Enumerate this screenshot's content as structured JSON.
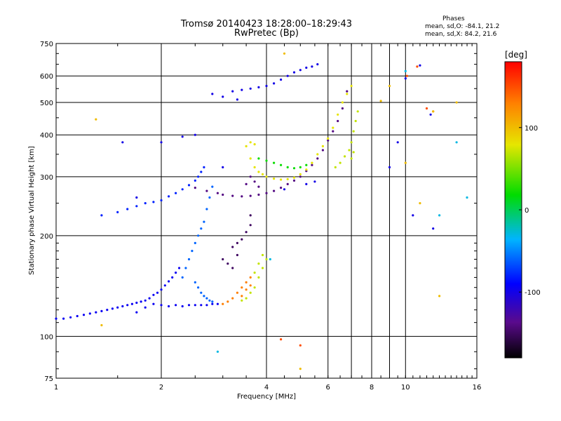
{
  "header": {
    "title": "Tromsø 20140423 18:28:00–18:29:43",
    "subtitle": "RwPretec (Bp)"
  },
  "phase_stats": {
    "title": "Phases",
    "o_line": "mean, sd,O: -84.1, 21.2",
    "x_line": "mean, sd,X:  84.2, 21.6"
  },
  "chart_data": {
    "type": "scatter",
    "xlabel": "Frequency [MHz]",
    "ylabel": "Stationary phase Virtual Height [km]",
    "x_scale": "log",
    "y_scale": "log",
    "xlim": [
      1,
      16
    ],
    "ylim": [
      75,
      750
    ],
    "x_ticks": [
      1,
      2,
      4,
      6,
      8,
      10,
      16
    ],
    "x_grid": [
      2,
      4,
      6,
      7,
      8,
      9,
      10,
      16
    ],
    "y_ticks": [
      75,
      100,
      200,
      300,
      400,
      500,
      600,
      750
    ],
    "grid": true,
    "colorbar": {
      "label": "[deg]",
      "ticks": [
        100,
        0,
        -100
      ],
      "range": [
        -180,
        180
      ]
    },
    "series": [
      {
        "color_deg": -95,
        "points": [
          [
            1.0,
            113
          ],
          [
            1.05,
            113
          ],
          [
            1.1,
            114
          ],
          [
            1.15,
            115
          ],
          [
            1.2,
            116
          ],
          [
            1.25,
            117
          ],
          [
            1.3,
            118
          ],
          [
            1.35,
            119
          ],
          [
            1.4,
            120
          ],
          [
            1.45,
            121
          ],
          [
            1.5,
            122
          ],
          [
            1.55,
            123
          ],
          [
            1.6,
            124
          ],
          [
            1.65,
            125
          ],
          [
            1.7,
            126
          ],
          [
            1.75,
            127
          ],
          [
            1.8,
            128
          ],
          [
            1.85,
            130
          ],
          [
            1.9,
            133
          ],
          [
            1.95,
            135
          ],
          [
            2.0,
            138
          ],
          [
            2.05,
            142
          ],
          [
            2.1,
            146
          ],
          [
            2.15,
            150
          ],
          [
            2.2,
            155
          ],
          [
            2.25,
            160
          ],
          [
            1.7,
            118
          ],
          [
            1.8,
            122
          ],
          [
            1.9,
            125
          ],
          [
            2.0,
            124
          ],
          [
            2.1,
            123
          ],
          [
            2.2,
            124
          ],
          [
            2.3,
            123
          ],
          [
            2.4,
            124
          ],
          [
            2.5,
            124
          ],
          [
            2.6,
            124
          ],
          [
            2.7,
            124
          ],
          [
            2.8,
            125
          ],
          [
            2.9,
            125
          ]
        ]
      },
      {
        "color_deg": -60,
        "points": [
          [
            2.3,
            150
          ],
          [
            2.35,
            160
          ],
          [
            2.4,
            170
          ],
          [
            2.45,
            180
          ],
          [
            2.5,
            190
          ],
          [
            2.55,
            200
          ],
          [
            2.6,
            210
          ],
          [
            2.65,
            220
          ],
          [
            2.7,
            240
          ],
          [
            2.75,
            260
          ],
          [
            2.8,
            280
          ],
          [
            2.5,
            145
          ],
          [
            2.55,
            140
          ],
          [
            2.6,
            135
          ],
          [
            2.65,
            132
          ],
          [
            2.7,
            130
          ],
          [
            2.75,
            128
          ],
          [
            2.8,
            127
          ]
        ]
      },
      {
        "color_deg": -80,
        "points": [
          [
            1.35,
            230
          ],
          [
            1.5,
            235
          ],
          [
            1.6,
            240
          ],
          [
            1.7,
            245
          ],
          [
            1.8,
            250
          ],
          [
            1.9,
            252
          ],
          [
            2.0,
            255
          ],
          [
            2.1,
            262
          ],
          [
            2.2,
            268
          ],
          [
            2.3,
            275
          ],
          [
            2.4,
            283
          ],
          [
            2.5,
            292
          ],
          [
            2.55,
            300
          ],
          [
            2.6,
            310
          ],
          [
            2.65,
            320
          ]
        ]
      },
      {
        "color_deg": -140,
        "points": [
          [
            2.5,
            278
          ],
          [
            2.7,
            272
          ],
          [
            2.9,
            268
          ],
          [
            3.0,
            265
          ],
          [
            3.2,
            263
          ],
          [
            3.4,
            262
          ],
          [
            3.6,
            263
          ],
          [
            3.8,
            265
          ],
          [
            4.0,
            268
          ],
          [
            4.2,
            272
          ],
          [
            4.4,
            278
          ],
          [
            4.6,
            285
          ],
          [
            4.8,
            292
          ],
          [
            5.0,
            300
          ],
          [
            5.2,
            312
          ],
          [
            5.4,
            325
          ],
          [
            5.6,
            340
          ],
          [
            5.8,
            360
          ],
          [
            6.0,
            385
          ],
          [
            6.2,
            410
          ],
          [
            6.4,
            440
          ],
          [
            6.6,
            480
          ],
          [
            6.8,
            540
          ],
          [
            3.6,
            300
          ],
          [
            3.5,
            285
          ],
          [
            3.7,
            290
          ],
          [
            3.8,
            280
          ]
        ]
      },
      {
        "color_deg": -100,
        "points": [
          [
            3.2,
            540
          ],
          [
            3.4,
            545
          ],
          [
            3.6,
            550
          ],
          [
            3.8,
            555
          ],
          [
            4.0,
            560
          ],
          [
            4.2,
            570
          ],
          [
            4.4,
            585
          ],
          [
            4.6,
            600
          ],
          [
            4.8,
            615
          ],
          [
            5.0,
            625
          ],
          [
            5.2,
            635
          ],
          [
            5.4,
            640
          ],
          [
            5.6,
            650
          ],
          [
            2.8,
            530
          ],
          [
            3.0,
            520
          ],
          [
            3.3,
            510
          ]
        ]
      },
      {
        "color_deg": 80,
        "points": [
          [
            3.5,
            370
          ],
          [
            3.6,
            340
          ],
          [
            3.7,
            320
          ],
          [
            3.8,
            310
          ],
          [
            3.9,
            305
          ],
          [
            4.0,
            300
          ],
          [
            4.2,
            296
          ],
          [
            4.4,
            294
          ],
          [
            4.6,
            295
          ],
          [
            4.8,
            298
          ],
          [
            5.0,
            305
          ],
          [
            5.2,
            315
          ],
          [
            5.4,
            330
          ],
          [
            5.6,
            350
          ],
          [
            5.8,
            370
          ],
          [
            6.0,
            390
          ],
          [
            6.2,
            420
          ],
          [
            6.4,
            460
          ],
          [
            6.6,
            500
          ],
          [
            6.8,
            530
          ],
          [
            7.0,
            560
          ],
          [
            3.6,
            380
          ],
          [
            3.7,
            375
          ]
        ]
      },
      {
        "color_deg": 20,
        "points": [
          [
            3.8,
            340
          ],
          [
            4.0,
            335
          ],
          [
            4.2,
            330
          ],
          [
            4.4,
            325
          ],
          [
            4.6,
            320
          ],
          [
            4.8,
            318
          ],
          [
            5.0,
            320
          ],
          [
            5.2,
            325
          ]
        ]
      },
      {
        "color_deg": 70,
        "points": [
          [
            6.3,
            320
          ],
          [
            6.5,
            330
          ],
          [
            6.7,
            345
          ],
          [
            6.9,
            360
          ],
          [
            7.0,
            380
          ],
          [
            7.1,
            410
          ],
          [
            7.2,
            440
          ],
          [
            7.3,
            470
          ],
          [
            7.0,
            340
          ],
          [
            7.1,
            355
          ]
        ]
      },
      {
        "color_deg": 130,
        "points": [
          [
            3.0,
            125
          ],
          [
            3.1,
            127
          ],
          [
            3.2,
            130
          ],
          [
            3.3,
            135
          ],
          [
            3.4,
            140
          ],
          [
            3.5,
            145
          ],
          [
            3.6,
            150
          ],
          [
            3.4,
            132
          ],
          [
            3.5,
            138
          ],
          [
            3.6,
            142
          ]
        ]
      },
      {
        "color_deg": 70,
        "points": [
          [
            3.4,
            128
          ],
          [
            3.5,
            130
          ],
          [
            3.6,
            135
          ],
          [
            3.7,
            140
          ],
          [
            3.8,
            150
          ],
          [
            3.9,
            160
          ],
          [
            4.0,
            170
          ],
          [
            3.7,
            155
          ],
          [
            3.8,
            165
          ],
          [
            3.9,
            175
          ]
        ]
      },
      {
        "color_deg": -150,
        "points": [
          [
            3.0,
            170
          ],
          [
            3.1,
            165
          ],
          [
            3.2,
            160
          ],
          [
            3.3,
            175
          ],
          [
            3.2,
            185
          ],
          [
            3.3,
            190
          ],
          [
            3.4,
            195
          ],
          [
            3.5,
            205
          ],
          [
            3.6,
            215
          ],
          [
            3.6,
            230
          ]
        ]
      },
      {
        "color_deg": -100,
        "points": [
          [
            2.0,
            380
          ],
          [
            2.3,
            395
          ],
          [
            2.5,
            400
          ],
          [
            1.55,
            380
          ],
          [
            1.7,
            260
          ],
          [
            3.0,
            320
          ],
          [
            4.5,
            275
          ],
          [
            5.2,
            285
          ],
          [
            5.5,
            290
          ],
          [
            9.0,
            320
          ],
          [
            9.5,
            380
          ],
          [
            10.0,
            590
          ],
          [
            11.0,
            645
          ],
          [
            12.0,
            210
          ],
          [
            11.8,
            460
          ],
          [
            10.5,
            230
          ]
        ]
      },
      {
        "color_deg": 150,
        "points": [
          [
            4.4,
            98
          ],
          [
            5.0,
            94
          ],
          [
            12.0,
            470
          ],
          [
            11.5,
            480
          ],
          [
            10.1,
            600
          ],
          [
            10.8,
            640
          ]
        ]
      },
      {
        "color_deg": 100,
        "points": [
          [
            1.3,
            445
          ],
          [
            1.35,
            108
          ],
          [
            5.0,
            80
          ],
          [
            4.5,
            700
          ],
          [
            8.5,
            505
          ],
          [
            9.0,
            560
          ],
          [
            10.0,
            330
          ],
          [
            11.0,
            250
          ],
          [
            12.0,
            470
          ],
          [
            12.5,
            132
          ],
          [
            14.0,
            500
          ]
        ]
      },
      {
        "color_deg": -30,
        "points": [
          [
            4.1,
            170
          ],
          [
            2.9,
            90
          ],
          [
            14.0,
            380
          ],
          [
            15.0,
            260
          ],
          [
            12.5,
            230
          ],
          [
            10.0,
            620
          ]
        ]
      }
    ]
  }
}
